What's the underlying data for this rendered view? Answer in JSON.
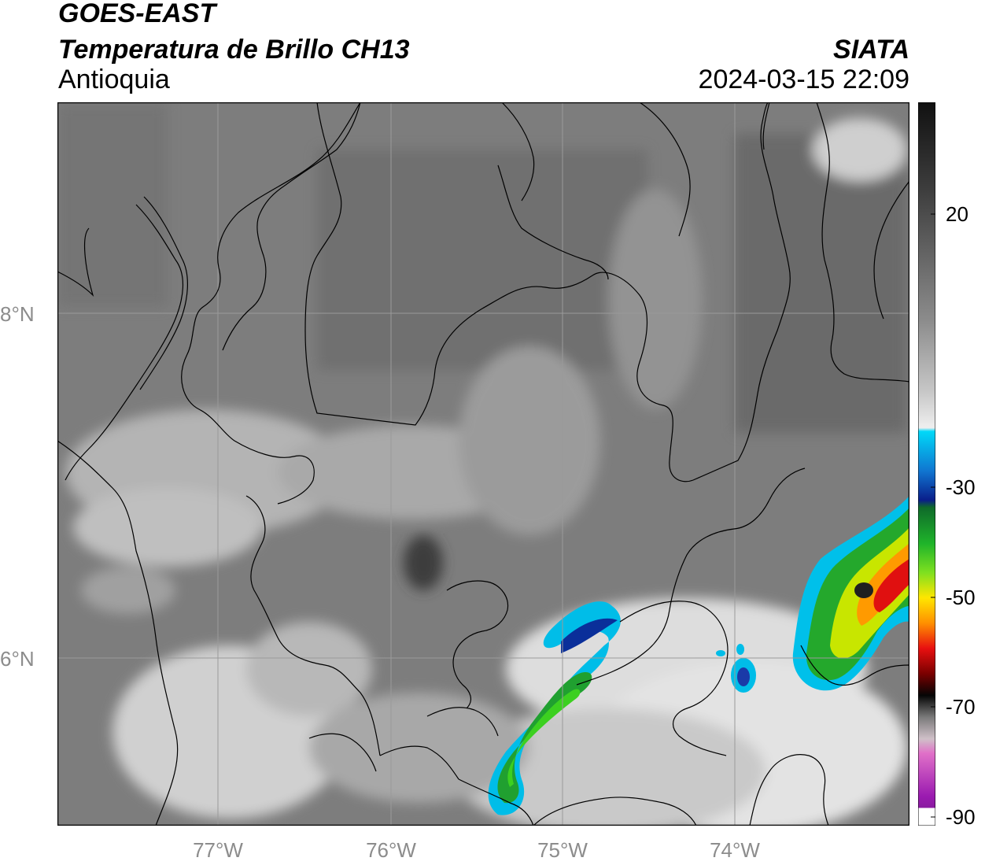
{
  "header": {
    "satellite": "GOES-EAST",
    "product": "Temperatura de Brillo CH13",
    "region": "Antioquia",
    "organization": "SIATA",
    "datetime": "2024-03-15 22:09"
  },
  "map": {
    "lat_ticks": [
      "8°N",
      "6°N"
    ],
    "lon_ticks": [
      "77°W",
      "76°W",
      "75°W",
      "74°W"
    ],
    "base_color": "#7d7d7d",
    "border_color": "#000000",
    "gridline_color": "#9a9a9a"
  },
  "colorbar": {
    "tick_labels": [
      "20",
      "-30",
      "-50",
      "-70",
      "-90"
    ],
    "colors": {
      "warm_gray_top": "#1a1a1a",
      "gray_mid": "#9d9d9d",
      "near_white": "#f2f2f2",
      "cyan": "#00c8f0",
      "dark_blue": "#0a1f8a",
      "green": "#28b428",
      "yellow": "#ffe600",
      "red": "#d81010",
      "black": "#000000",
      "magenta": "#d850c8",
      "purple": "#8a1aa0"
    }
  }
}
